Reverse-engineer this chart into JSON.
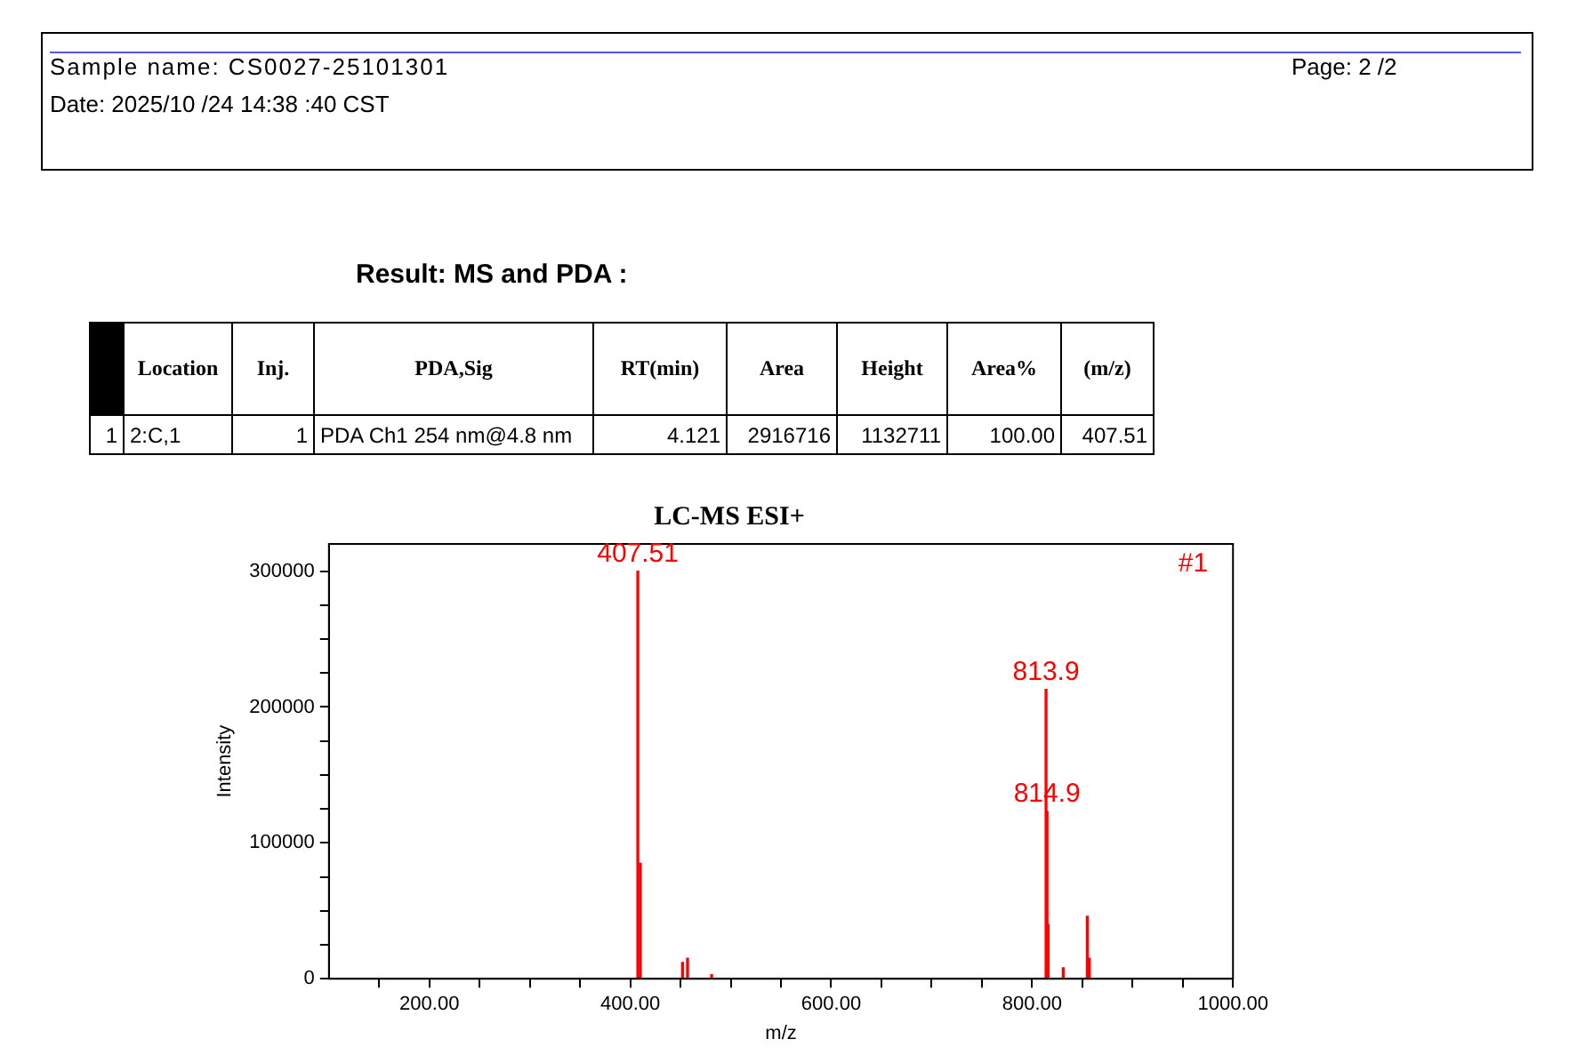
{
  "chart_data": [
    {
      "type": "other",
      "annotations": [
        "Sample name:  CS0027-25101301",
        "Page:  2 /2",
        "Date:  2025/10 /24 14:38 :40 CST"
      ]
    },
    {
      "type": "other",
      "title": "Result:  MS and PDA :",
      "categories": [
        null,
        "Location",
        "Inj.",
        "PDA,Sig",
        "RT(min)",
        "Area",
        "Height",
        "Area%",
        "(m/z)"
      ],
      "annotations": [
        "1",
        "2:C,1",
        "1",
        "PDA Ch1 254 nm@4.8 nm",
        "4.121",
        "2916716",
        "1132711",
        "100.00",
        "407.51"
      ]
    },
    {
      "type": "bar",
      "title": "LC-MS ESI+",
      "xlabel": "m/z",
      "ylabel": "Intensity",
      "grid": false,
      "legend": false,
      "xlim": [
        100,
        1000
      ],
      "ylim": [
        0,
        320000
      ],
      "xticks": [
        {
          "value": 150,
          "label": null
        },
        {
          "value": 200,
          "label": "200.00"
        },
        {
          "value": 250,
          "label": null
        },
        {
          "value": 300,
          "label": null
        },
        {
          "value": 350,
          "label": null
        },
        {
          "value": 400,
          "label": "400.00"
        },
        {
          "value": 450,
          "label": null
        },
        {
          "value": 500,
          "label": null
        },
        {
          "value": 550,
          "label": null
        },
        {
          "value": 600,
          "label": "600.00"
        },
        {
          "value": 650,
          "label": null
        },
        {
          "value": 700,
          "label": null
        },
        {
          "value": 750,
          "label": null
        },
        {
          "value": 800,
          "label": "800.00"
        },
        {
          "value": 850,
          "label": null
        },
        {
          "value": 900,
          "label": null
        },
        {
          "value": 950,
          "label": null
        },
        {
          "value": 1000,
          "label": "1000.00"
        }
      ],
      "yticks": [
        0,
        {
          "value": 25000,
          "label": null
        },
        {
          "value": 50000,
          "label": null
        },
        {
          "value": 75000,
          "label": null
        },
        100000,
        {
          "value": 125000,
          "label": null
        },
        {
          "value": 150000,
          "label": null
        },
        {
          "value": 175000,
          "label": null
        },
        200000,
        {
          "value": 225000,
          "label": null
        },
        {
          "value": 250000,
          "label": null
        },
        {
          "value": 275000,
          "label": null
        },
        300000
      ],
      "series": [
        {
          "color": "#ff0000",
          "x": [
            407.51,
            410,
            452,
            457,
            481,
            813.9,
            814.9,
            815.9,
            831,
            855,
            857
          ],
          "values": [
            300000,
            85000,
            12000,
            15000,
            3000,
            213000,
            123000,
            40000,
            8000,
            46000,
            15000
          ]
        }
      ],
      "annotations": [
        {
          "text": "407.51",
          "x": 407.51,
          "y": 300000
        },
        {
          "text": "813.9",
          "x": 813.9,
          "y": 213000
        },
        {
          "text": "814.9",
          "x": 814.9,
          "y": 123000
        },
        "#1"
      ]
    }
  ]
}
